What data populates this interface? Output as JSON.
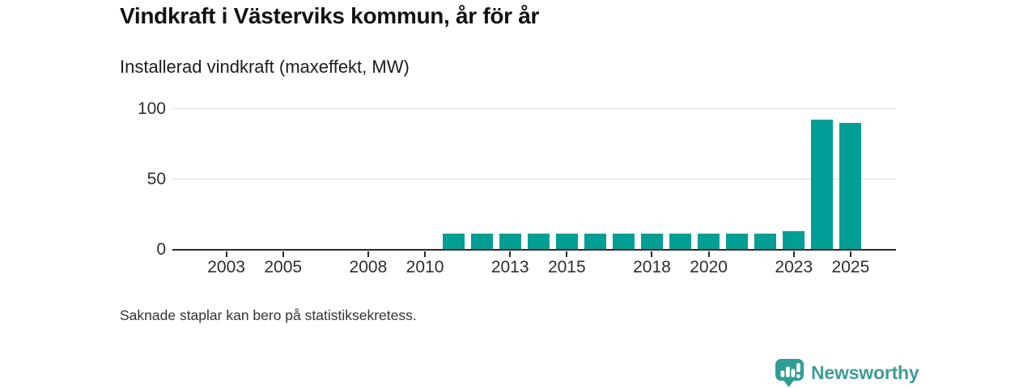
{
  "header": {
    "title": "Vindkraft i Västerviks kommun, år för år",
    "subtitle": "Installerad vindkraft (maxeffekt, MW)"
  },
  "chart_data": {
    "type": "bar",
    "title": "Vindkraft i Västerviks kommun, år för år",
    "subtitle": "Installerad vindkraft (maxeffekt, MW)",
    "units": "MW",
    "x": [
      2011,
      2012,
      2013,
      2014,
      2015,
      2016,
      2017,
      2018,
      2019,
      2020,
      2021,
      2022,
      2023,
      2024,
      2025
    ],
    "values": [
      11,
      11,
      11,
      11,
      11,
      11,
      11,
      11,
      11,
      11,
      11,
      11,
      13,
      92,
      90
    ],
    "x_ticks": [
      2003,
      2005,
      2008,
      2010,
      2013,
      2015,
      2018,
      2020,
      2023,
      2025
    ],
    "y_ticks": [
      0,
      50,
      100
    ],
    "xlim": [
      2001.1,
      2026.6
    ],
    "ylim": [
      0,
      100
    ],
    "grid": true,
    "legend": "none",
    "bar_color": "#019e96",
    "axis_color": "#2a2a2a",
    "grid_color": "#dbdbdb"
  },
  "footnote": {
    "text": "Saknade staplar kan bero på statistiksekretess."
  },
  "branding": {
    "wordmark": "Newsworthy",
    "color": "#3f9c96",
    "icon_color": "#2f9e97"
  }
}
